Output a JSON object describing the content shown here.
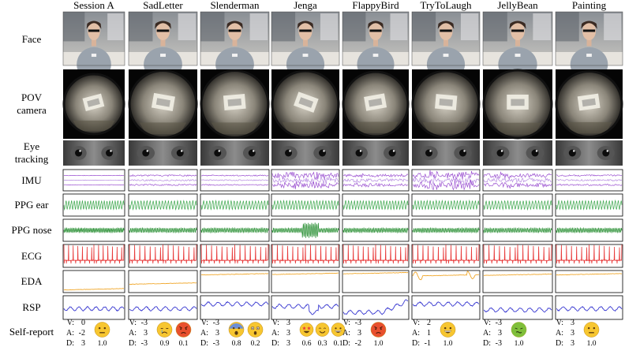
{
  "sessions": [
    "Session A",
    "SadLetter",
    "Slenderman",
    "Jenga",
    "FlappyBird",
    "TryToLaugh",
    "JellyBean",
    "Painting"
  ],
  "row_labels": {
    "face": [
      "Face"
    ],
    "pov": [
      "POV",
      "camera"
    ],
    "eye": [
      "Eye",
      "tracking"
    ],
    "imu": [
      "IMU"
    ],
    "ppg_ear": [
      "PPG ear"
    ],
    "ppg_nose": [
      "PPG nose"
    ],
    "ecg": [
      "ECG"
    ],
    "eda": [
      "EDA"
    ],
    "rsp": [
      "RSP"
    ],
    "self_report": [
      "Self-report"
    ]
  },
  "colors": {
    "imu": "#9a4fd0",
    "ppg_ear": "#3aa64a",
    "ppg_nose": "#1f8a2a",
    "ecg": "#e83a3a",
    "eda": "#f0a72b",
    "rsp": "#3b3bd1",
    "emoji_face": "#f7c630"
  },
  "self_reports": [
    {
      "v": "0",
      "a": "-2",
      "d": "3",
      "emojis": [
        {
          "kind": "neutral",
          "score": "1.0"
        }
      ]
    },
    {
      "v": "-3",
      "a": "3",
      "d": "-3",
      "emojis": [
        {
          "kind": "crying",
          "score": "0.9"
        },
        {
          "kind": "angry",
          "score": "0.1"
        }
      ]
    },
    {
      "v": "-3",
      "a": "3",
      "d": "-3",
      "emojis": [
        {
          "kind": "fearful",
          "score": "0.8"
        },
        {
          "kind": "astonished",
          "score": "0.2"
        }
      ]
    },
    {
      "v": "3",
      "a": "3",
      "d": "3",
      "emojis": [
        {
          "kind": "star-struck",
          "score": "0.6"
        },
        {
          "kind": "smiling",
          "score": "0.3"
        },
        {
          "kind": "grinning",
          "score": "0.1"
        }
      ]
    },
    {
      "v": "-3",
      "a": "3",
      "d": "-2",
      "emojis": [
        {
          "kind": "angry",
          "score": "1.0"
        }
      ]
    },
    {
      "v": "2",
      "a": "1",
      "d": "-1",
      "emojis": [
        {
          "kind": "grinning",
          "score": "1.0"
        }
      ]
    },
    {
      "v": "-3",
      "a": "3",
      "d": "-3",
      "emojis": [
        {
          "kind": "nauseated",
          "score": "1.0"
        }
      ]
    },
    {
      "v": "3",
      "a": "3",
      "d": "3",
      "emojis": [
        {
          "kind": "neutral",
          "score": "1.0"
        }
      ]
    }
  ],
  "vad_labels": {
    "v": "V:",
    "a": "A:",
    "d": "D:"
  }
}
